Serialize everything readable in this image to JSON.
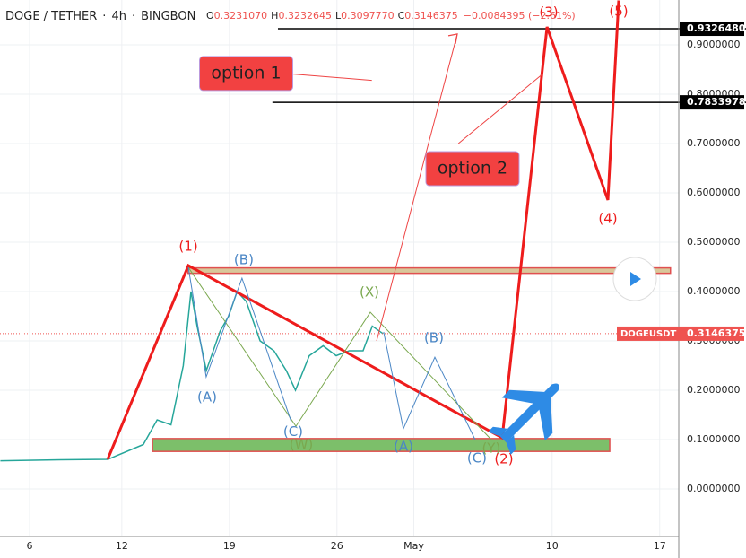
{
  "header": {
    "symbol": "DOGE / TETHER",
    "interval": "4h",
    "exchange": "BINGBON",
    "ohlc": [
      {
        "label": "O",
        "value": "0.3231070"
      },
      {
        "label": "H",
        "value": "0.3232645"
      },
      {
        "label": "L",
        "value": "0.3097770"
      },
      {
        "label": "C",
        "value": "0.3146375"
      }
    ],
    "change": "−0.0084395 (−2.61%)"
  },
  "chart_data": {
    "type": "line",
    "xlim": [
      4.075,
      48.24
    ],
    "ylim": [
      -0.0964,
      0.9909
    ],
    "xticks": [
      6,
      12,
      19,
      26,
      {
        "value": 31,
        "label": "May"
      },
      {
        "value": 40,
        "label": "10"
      },
      {
        "value": 47,
        "label": "17"
      }
    ],
    "yticks": [
      {
        "value": 0,
        "label": "0.0000000"
      },
      {
        "value": 0.1,
        "label": "0.1000000"
      },
      {
        "value": 0.2,
        "label": "0.2000000"
      },
      {
        "value": 0.3,
        "label": "0.3000000"
      },
      {
        "value": 0.4,
        "label": "0.4000000"
      },
      {
        "value": 0.5,
        "label": "0.5000000"
      },
      {
        "value": 0.6,
        "label": "0.6000000"
      },
      {
        "value": 0.7,
        "label": "0.7000000"
      },
      {
        "value": 0.8,
        "label": "0.8000000"
      },
      {
        "value": 0.9,
        "label": "0.9000000"
      }
    ],
    "grid": true,
    "series": [
      {
        "name": "DOGEUSDT",
        "color": "#26a69a",
        "x": [
          4.1,
          8,
          11.1,
          13.4,
          14.3,
          15.2,
          16.0,
          16.5,
          16.9,
          17.5,
          18.4,
          18.95,
          19.5,
          20.1,
          21.0,
          21.9,
          22.7,
          23.3,
          24.2,
          25.1,
          25.95,
          26.8,
          27.7,
          28.3,
          29.0
        ],
        "values": [
          0.057,
          0.059,
          0.06,
          0.09,
          0.14,
          0.13,
          0.25,
          0.4,
          0.33,
          0.24,
          0.32,
          0.35,
          0.4,
          0.38,
          0.3,
          0.28,
          0.24,
          0.2,
          0.27,
          0.29,
          0.27,
          0.28,
          0.28,
          0.33,
          0.3146375
        ]
      }
    ],
    "last_price": 0.3146375,
    "hlines": [
      {
        "value": 0.932648,
        "label": "0.9326480",
        "x": 22.16
      },
      {
        "value": 0.7833978,
        "x": 21.8
      }
    ],
    "zones": [
      {
        "x": [
          14.0,
          43.75
        ],
        "y": [
          0.076,
          0.102
        ],
        "color": "#7cbf6a"
      },
      {
        "x": [
          16.3,
          47.7
        ],
        "y": [
          0.437,
          0.448
        ],
        "color": "#d9c79a"
      }
    ],
    "drawings": [
      {
        "color": "#ee1c1c",
        "width": 3,
        "x": [
          11.08,
          16.33,
          36.75,
          39.67,
          43.63,
          44.33
        ],
        "y": [
          0.06,
          0.4527,
          0.1036,
          0.9364,
          0.5855,
          0.99
        ]
      },
      {
        "color": "#7aa84f",
        "width": 1,
        "x": [
          16.33,
          23.33,
          28.17,
          36.04
        ],
        "y": [
          0.449,
          0.127,
          0.358,
          0.1
        ]
      },
      {
        "color": "#4a86c5",
        "width": 1,
        "x": [
          16.33,
          17.49,
          19.82,
          23.03
        ],
        "y": [
          0.449,
          0.227,
          0.427,
          0.136
        ]
      },
      {
        "color": "#4a86c5",
        "width": 1,
        "x": [
          29.04,
          30.32,
          32.37,
          34.99
        ],
        "y": [
          0.318,
          0.122,
          0.267,
          0.1
        ]
      },
      {
        "color": "#ee4444",
        "width": 1,
        "x": [
          28.58,
          33.83
        ],
        "y": [
          0.3,
          0.922
        ]
      },
      {
        "color": "#ee4444",
        "width": 1,
        "x": [
          33.9,
          39.35
        ],
        "y": [
          0.7,
          0.84
        ]
      },
      {
        "color": "#ee4444",
        "width": 1,
        "x": [
          22.6,
          28.27
        ],
        "y": [
          0.842,
          0.828
        ]
      }
    ],
    "annotations": [
      {
        "text": "(1)",
        "x": 16.33,
        "y": 0.491,
        "color": "#ee1c1c"
      },
      {
        "text": "(B)",
        "x": 19.94,
        "y": 0.4636,
        "color": "#4a86c5"
      },
      {
        "text": "(A)",
        "x": 17.55,
        "y": 0.185,
        "color": "#4a86c5"
      },
      {
        "text": "(C)",
        "x": 23.15,
        "y": 0.115,
        "color": "#4a86c5"
      },
      {
        "text": "(W)",
        "x": 23.68,
        "y": 0.089,
        "color": "#7aa84f"
      },
      {
        "text": "(X)",
        "x": 28.11,
        "y": 0.398,
        "color": "#7aa84f"
      },
      {
        "text": "(B)",
        "x": 32.31,
        "y": 0.305,
        "color": "#4a86c5"
      },
      {
        "text": "(A)",
        "x": 30.33,
        "y": 0.085,
        "color": "#4a86c5"
      },
      {
        "text": "(C)",
        "x": 35.11,
        "y": 0.062,
        "color": "#4a86c5"
      },
      {
        "text": "(Y)",
        "x": 36.04,
        "y": 0.082,
        "color": "#7aa84f"
      },
      {
        "text": "(2)",
        "x": 36.86,
        "y": 0.06,
        "color": "#ee1c1c"
      },
      {
        "text": "(3)",
        "x": 39.78,
        "y": 0.965,
        "color": "#ee1c1c"
      },
      {
        "text": "(4)",
        "x": 43.63,
        "y": 0.547,
        "color": "#ee1c1c"
      },
      {
        "text": "(5)",
        "x": 44.33,
        "y": 0.967,
        "color": "#ee1c1c"
      }
    ],
    "callouts": [
      {
        "text": "option 1",
        "x": 20.09,
        "y": 0.842
      },
      {
        "text": "option 2",
        "x": 34.82,
        "y": 0.649
      }
    ]
  }
}
